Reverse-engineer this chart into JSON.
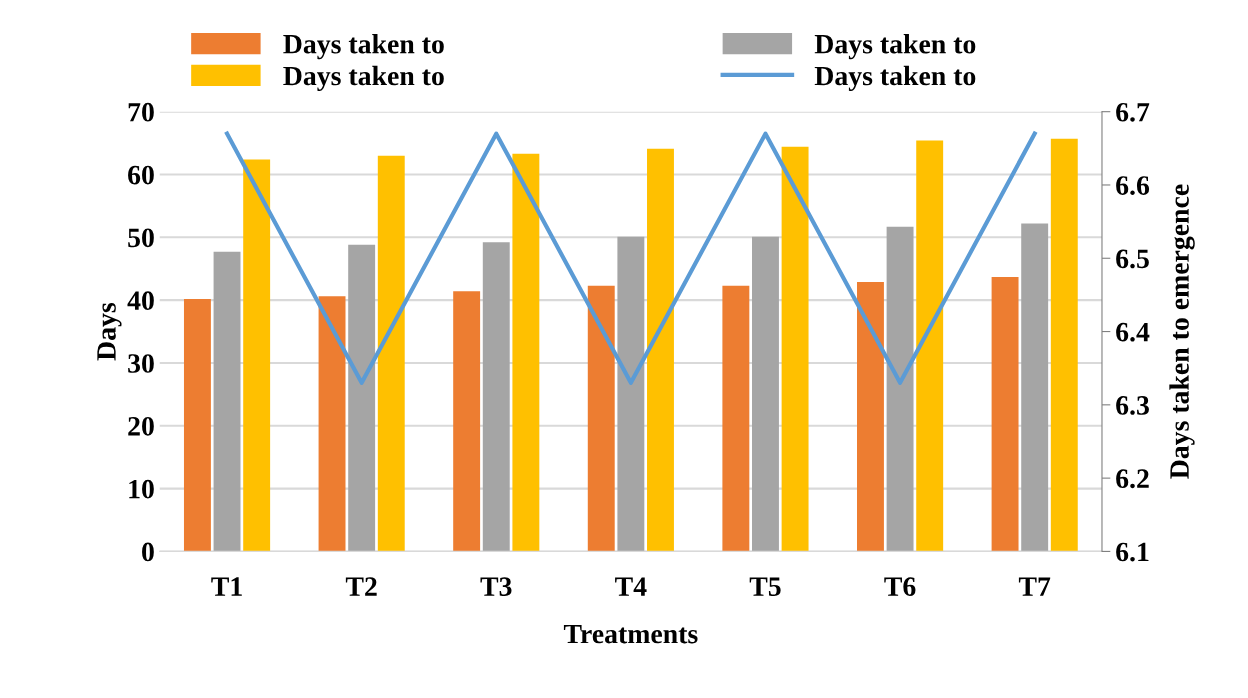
{
  "chart_data": {
    "type": "bar",
    "xlabel": "Treatments",
    "ylabel": "Days",
    "y2label": "Days taken to emergence",
    "categories": [
      "T1",
      "T2",
      "T3",
      "T4",
      "T5",
      "T6",
      "T7"
    ],
    "series": [
      {
        "name": "Days taken to",
        "color": "#ed7d31",
        "values": [
          40.2,
          40.6,
          41.4,
          42.3,
          42.3,
          42.9,
          43.7
        ]
      },
      {
        "name": "Days taken to",
        "color": "#a5a5a5",
        "values": [
          47.7,
          48.8,
          49.2,
          50.1,
          50.1,
          51.7,
          52.2
        ]
      },
      {
        "name": "Days taken to",
        "color": "#ffc000",
        "values": [
          62.4,
          63.0,
          63.3,
          64.1,
          64.4,
          65.4,
          65.7
        ]
      },
      {
        "name": "Days taken to",
        "color": "#5b9bd5",
        "type": "line",
        "axis": "y2",
        "values": [
          6.67,
          6.33,
          6.67,
          6.33,
          6.67,
          6.33,
          6.67
        ]
      }
    ],
    "ylim": [
      0,
      70
    ],
    "yticks": [
      0,
      10,
      20,
      30,
      40,
      50,
      60,
      70
    ],
    "y2lim": [
      6.1,
      6.7
    ],
    "y2ticks": [
      6.1,
      6.2,
      6.3,
      6.4,
      6.5,
      6.6,
      6.7
    ],
    "grid": "y",
    "legend": "top",
    "marker": "none"
  }
}
